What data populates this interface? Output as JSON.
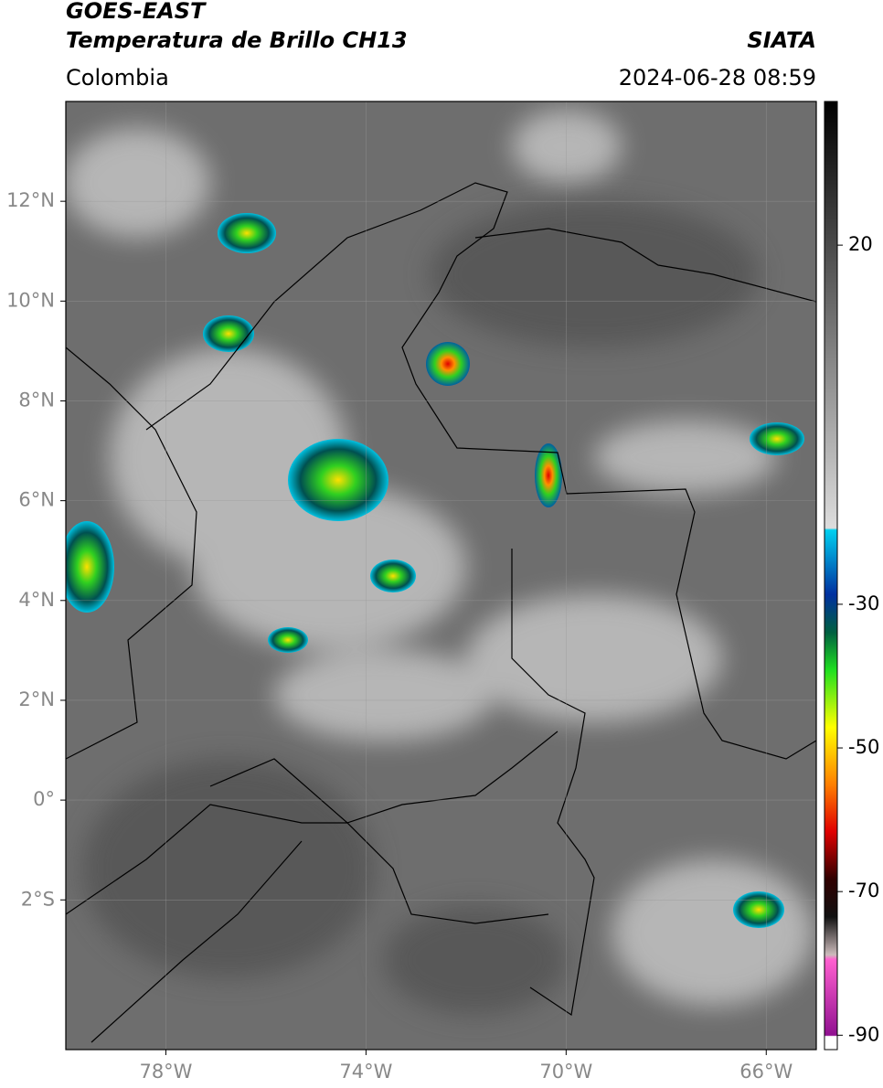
{
  "header": {
    "title": "GOES-EAST",
    "subtitle": "Temperatura de Brillo CH13",
    "region": "Colombia",
    "source": "SIATA",
    "datetime": "2024-06-28 08:59"
  },
  "map": {
    "xlim": [
      -80,
      -65
    ],
    "ylim": [
      -5,
      14
    ],
    "xticks": [
      {
        "value": -78,
        "label": "78°W"
      },
      {
        "value": -74,
        "label": "74°W"
      },
      {
        "value": -70,
        "label": "70°W"
      },
      {
        "value": -66,
        "label": "66°W"
      }
    ],
    "yticks": [
      {
        "value": 12,
        "label": "12°N"
      },
      {
        "value": 10,
        "label": "10°N"
      },
      {
        "value": 8,
        "label": "8°N"
      },
      {
        "value": 6,
        "label": "6°N"
      },
      {
        "value": 4,
        "label": "4°N"
      },
      {
        "value": 2,
        "label": "2°N"
      },
      {
        "value": 0,
        "label": "0°"
      },
      {
        "value": -2,
        "label": "2°S"
      }
    ],
    "grid": true
  },
  "colorbar": {
    "lim": [
      -92,
      40
    ],
    "ticks": [
      20,
      -30,
      -50,
      -70,
      -90
    ]
  }
}
